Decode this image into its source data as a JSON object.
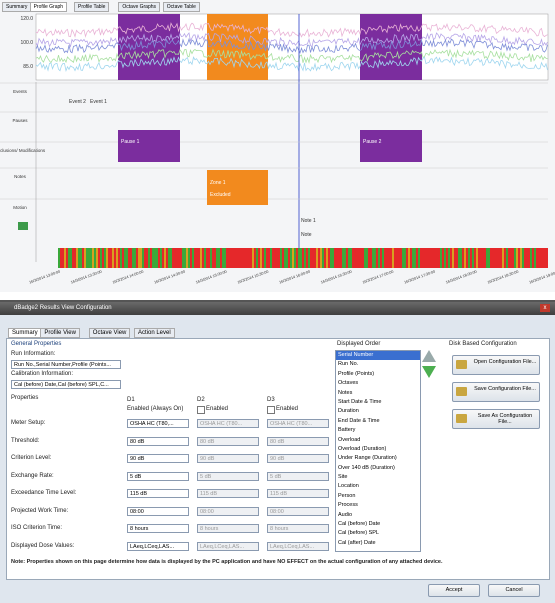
{
  "profile_window": {
    "tabs": [
      "Summary",
      "Profile Graph",
      "Profile Table",
      "Octave Graphs",
      "Octave Table"
    ],
    "y_axis_labels": [
      "120.0",
      "100.0",
      "85.0"
    ],
    "rows": [
      "Events",
      "Pauses",
      "Exclusions/ Modifications",
      "Notes",
      "Motion"
    ],
    "events": [
      "Event 2",
      "Event 1"
    ],
    "pauses": [
      "Pause 1",
      "Pause 2"
    ],
    "exclusion": {
      "label": "Zone 1",
      "status": "Excluded"
    },
    "note": {
      "label": "Note 1",
      "text": "Note"
    },
    "time_labels": [
      "16/3/2014 13:00:00",
      "16/3/2014 13:30:00",
      "16/3/2014 14:00:00",
      "16/3/2014 14:30:00",
      "16/3/2014 15:00:00",
      "16/3/2014 15:30:00",
      "16/3/2014 16:00:00",
      "16/3/2014 16:30:00",
      "16/3/2014 17:00:00",
      "16/3/2014 17:30:00",
      "16/3/2014 18:00:00",
      "16/3/2014 18:30:00",
      "16/3/2014 19:00:00"
    ]
  },
  "config_dialog": {
    "title": "dBadge2 Results View Configuration",
    "tabs": [
      "Summary",
      "Profile View",
      "Octave View",
      "Action Level"
    ],
    "general": {
      "heading": "General Properties",
      "run_label": "Run Information:",
      "run_value": "Run No.,Serial Number,Profile (Points...",
      "cal_label": "Calibration Information:",
      "cal_value": "Cal (before) Date,Cal (before) SPL,C..."
    },
    "properties": {
      "heading": "Properties",
      "columns": [
        "D1",
        "D2",
        "D3"
      ],
      "enabled": [
        "Enabled (Always On)",
        "Enabled",
        "Enabled"
      ],
      "rows": [
        {
          "label": "Meter Setup:",
          "values": [
            "OSHA HC (T80,...",
            "OSHA HC (T80...",
            "OSHA HC (T80..."
          ]
        },
        {
          "label": "Threshold:",
          "values": [
            "80 dB",
            "80 dB",
            "80 dB"
          ]
        },
        {
          "label": "Criterion Level:",
          "values": [
            "90 dB",
            "90 dB",
            "90 dB"
          ]
        },
        {
          "label": "Exchange Rate:",
          "values": [
            "5 dB",
            "5 dB",
            "5 dB"
          ]
        },
        {
          "label": "Exceedance Time Level:",
          "values": [
            "115 dB",
            "115 dB",
            "115 dB"
          ]
        },
        {
          "label": "Projected Work Time:",
          "values": [
            "08:00",
            "08:00",
            "08:00"
          ]
        },
        {
          "label": "ISO Criterion Time:",
          "values": [
            "8 hours",
            "8 hours",
            "8 hours"
          ]
        },
        {
          "label": "Displayed Dose Values:",
          "values": [
            "LAeq,LCeq,LAS...",
            "LAeq,LCeq,LAS...",
            "LAeq,LCeq,LAS..."
          ]
        }
      ]
    },
    "displayed_order": {
      "heading": "Displayed Order",
      "items": [
        "Serial Number",
        "Run No.",
        "Profile (Points)",
        "Octaves",
        "Notes",
        "Start Date & Time",
        "Duration",
        "End Date & Time",
        "Battery",
        "Overload",
        "Overload (Duration)",
        "Under Range (Duration)",
        "Over 140 dB (Duration)",
        "Site",
        "Location",
        "Person",
        "Process",
        "Audio",
        "Cal (before) Date",
        "Cal (before) SPL",
        "Cal (after) Date"
      ]
    },
    "disk": {
      "heading": "Disk Based Configuration",
      "buttons": [
        "Open Configuration File...",
        "Save Configuration File...",
        "Save As Configuration File..."
      ]
    },
    "note": "Note: Properties shown on this page determine how data is displayed by the PC application and have NO EFFECT on the actual configuration of any attached device.",
    "buttons": [
      "Accept",
      "Cancel"
    ]
  }
}
